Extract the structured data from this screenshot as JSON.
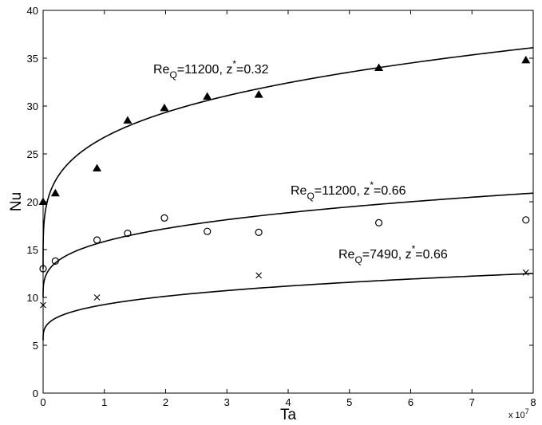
{
  "chart_data": {
    "type": "scatter",
    "xlabel": "Ta",
    "ylabel": "Nu",
    "x_multiplier_label": {
      "base": "x 10",
      "exponent": "7"
    },
    "xlim": [
      0,
      8
    ],
    "ylim": [
      0,
      40
    ],
    "xticks": [
      "0",
      "1",
      "2",
      "3",
      "4",
      "5",
      "6",
      "7",
      "8"
    ],
    "yticks": [
      "0",
      "5",
      "10",
      "15",
      "20",
      "25",
      "30",
      "35",
      "40"
    ],
    "grid": false,
    "legend": "none",
    "series": [
      {
        "label_re": "Re",
        "label_sub": "Q",
        "label_re_value": "=11200, z",
        "label_sup": "*",
        "label_z_value": "=0.32",
        "marker": "triangle",
        "x": [
          0.0,
          0.2,
          0.88,
          1.38,
          1.98,
          2.68,
          3.52,
          5.48,
          7.88
        ],
        "y": [
          20.0,
          20.9,
          23.5,
          28.5,
          29.8,
          31.0,
          31.2,
          34.0,
          34.8
        ],
        "fit": {
          "a": 13.0,
          "b": 23.1,
          "p": 0.25
        }
      },
      {
        "label_re": "Re",
        "label_sub": "Q",
        "label_re_value": "=11200, z",
        "label_sup": "*",
        "label_z_value": "=0.66",
        "marker": "circle",
        "x": [
          0.0,
          0.2,
          0.88,
          1.38,
          1.98,
          2.68,
          3.52,
          5.48,
          7.88
        ],
        "y": [
          13.0,
          13.8,
          16.0,
          16.7,
          18.3,
          16.9,
          16.8,
          17.8,
          18.1
        ],
        "fit": {
          "a": 10.0,
          "b": 10.9,
          "p": 0.3
        }
      },
      {
        "label_re": "Re",
        "label_sub": "Q",
        "label_re_value": "=7490, z",
        "label_sup": "*",
        "label_z_value": "=0.66",
        "marker": "x",
        "x": [
          0.0,
          0.88,
          3.52,
          7.88
        ],
        "y": [
          9.2,
          10.0,
          12.3,
          12.6
        ],
        "fit": {
          "a": 5.5,
          "b": 7.0,
          "p": 0.3
        }
      }
    ]
  },
  "colors": {
    "ink": "#000000",
    "background": "#ffffff"
  }
}
